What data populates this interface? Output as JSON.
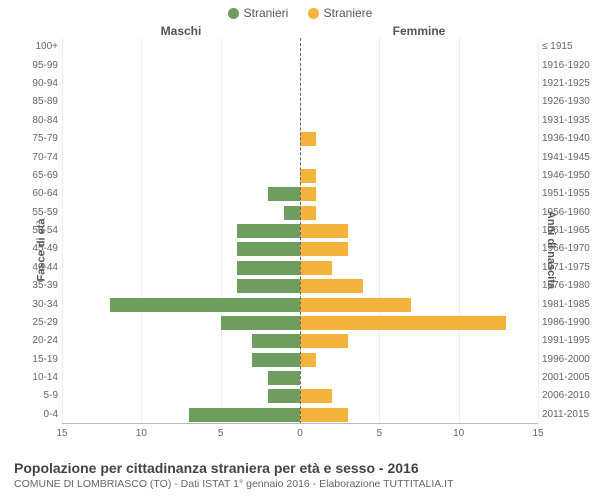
{
  "legend": {
    "male": {
      "label": "Stranieri",
      "color": "#6f9c5f"
    },
    "female": {
      "label": "Straniere",
      "color": "#f3b33c"
    }
  },
  "headers": {
    "male": "Maschi",
    "female": "Femmine"
  },
  "axis_titles": {
    "left": "Fasce di età",
    "right": "Anni di nascita"
  },
  "x_axis": {
    "max": 15,
    "ticks": [
      0,
      5,
      10,
      15
    ],
    "label_0": "0",
    "label_5": "5",
    "label_10": "10",
    "label_15": "15"
  },
  "grid_color": "#eeeeee",
  "center_color": "#666666",
  "rows": [
    {
      "age": "0-4",
      "birth": "2011-2015",
      "m": 7,
      "f": 3
    },
    {
      "age": "5-9",
      "birth": "2006-2010",
      "m": 2,
      "f": 2
    },
    {
      "age": "10-14",
      "birth": "2001-2005",
      "m": 2,
      "f": 0
    },
    {
      "age": "15-19",
      "birth": "1996-2000",
      "m": 3,
      "f": 1
    },
    {
      "age": "20-24",
      "birth": "1991-1995",
      "m": 3,
      "f": 3
    },
    {
      "age": "25-29",
      "birth": "1986-1990",
      "m": 5,
      "f": 13
    },
    {
      "age": "30-34",
      "birth": "1981-1985",
      "m": 12,
      "f": 7
    },
    {
      "age": "35-39",
      "birth": "1976-1980",
      "m": 4,
      "f": 4
    },
    {
      "age": "40-44",
      "birth": "1971-1975",
      "m": 4,
      "f": 2
    },
    {
      "age": "45-49",
      "birth": "1966-1970",
      "m": 4,
      "f": 3
    },
    {
      "age": "50-54",
      "birth": "1961-1965",
      "m": 4,
      "f": 3
    },
    {
      "age": "55-59",
      "birth": "1956-1960",
      "m": 1,
      "f": 1
    },
    {
      "age": "60-64",
      "birth": "1951-1955",
      "m": 2,
      "f": 1
    },
    {
      "age": "65-69",
      "birth": "1946-1950",
      "m": 0,
      "f": 1
    },
    {
      "age": "70-74",
      "birth": "1941-1945",
      "m": 0,
      "f": 0
    },
    {
      "age": "75-79",
      "birth": "1936-1940",
      "m": 0,
      "f": 1
    },
    {
      "age": "80-84",
      "birth": "1931-1935",
      "m": 0,
      "f": 0
    },
    {
      "age": "85-89",
      "birth": "1926-1930",
      "m": 0,
      "f": 0
    },
    {
      "age": "90-94",
      "birth": "1921-1925",
      "m": 0,
      "f": 0
    },
    {
      "age": "95-99",
      "birth": "1916-1920",
      "m": 0,
      "f": 0
    },
    {
      "age": "100+",
      "birth": "≤ 1915",
      "m": 0,
      "f": 0
    }
  ],
  "footer": {
    "title": "Popolazione per cittadinanza straniera per età e sesso - 2016",
    "subtitle": "COMUNE DI LOMBRIASCO (TO) - Dati ISTAT 1° gennaio 2016 - Elaborazione TUTTITALIA.IT"
  }
}
